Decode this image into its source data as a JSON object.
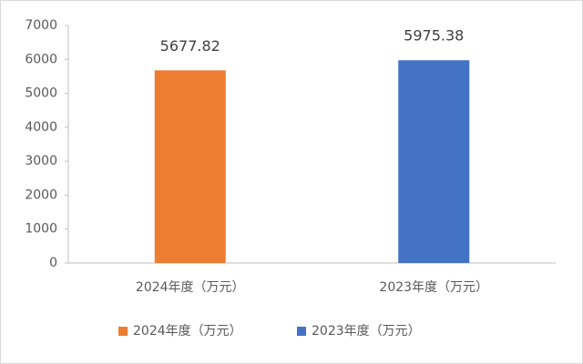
{
  "chart_data": {
    "type": "bar",
    "categories": [
      "2024年度（万元）",
      "2023年度（万元）"
    ],
    "series": [
      {
        "name": "2024年度（万元）",
        "color": "#ed7d31",
        "values": [
          5677.82,
          null
        ]
      },
      {
        "name": "2023年度（万元）",
        "color": "#4472c4",
        "values": [
          null,
          5975.38
        ]
      }
    ],
    "ylim": [
      0,
      7000
    ],
    "yticks": [
      0,
      1000,
      2000,
      3000,
      4000,
      5000,
      6000,
      7000
    ],
    "grid": false,
    "legend": "bottom"
  }
}
